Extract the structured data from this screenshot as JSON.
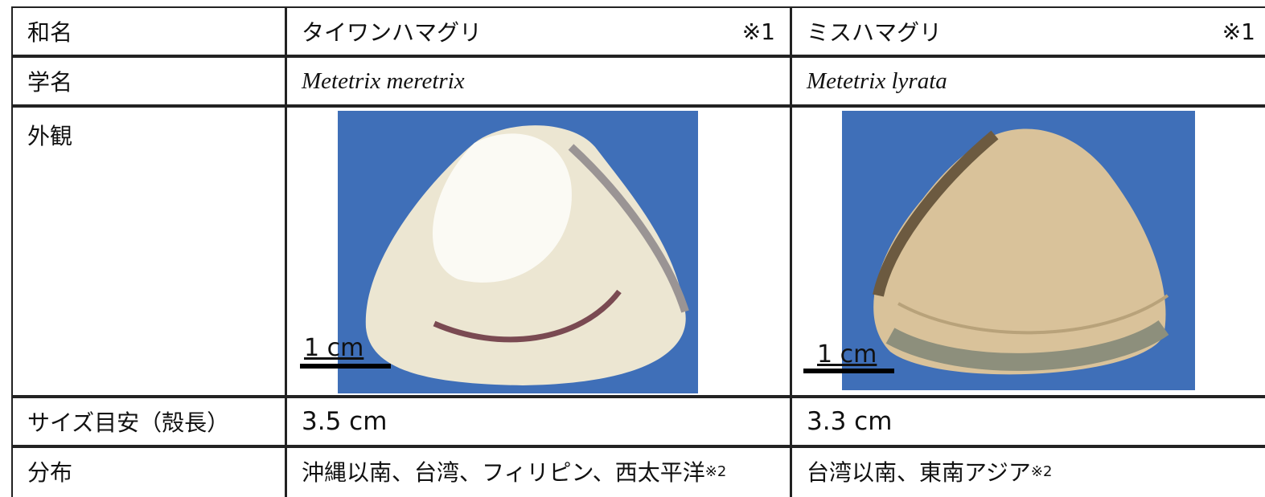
{
  "table": {
    "rows": [
      {
        "label": "和名",
        "cells": [
          {
            "text": "タイワンハマグリ",
            "note": "※1"
          },
          {
            "text": "ミスハマグリ",
            "note": "※1"
          }
        ]
      },
      {
        "label": "学名",
        "cells": [
          {
            "text": "Metetrix meretrix"
          },
          {
            "text": "Metetrix lyrata"
          }
        ]
      },
      {
        "label": "外観",
        "cells": [
          {
            "scale": "1 cm"
          },
          {
            "scale": "1 cm"
          }
        ]
      },
      {
        "label": "サイズ目安（殻長）",
        "cells": [
          {
            "text": "3.5 cm"
          },
          {
            "text": "3.3 cm"
          }
        ]
      },
      {
        "label": "分布",
        "cells": [
          {
            "text": "沖縄以南、台湾、フィリピン、西太平洋",
            "note": "※2"
          },
          {
            "text": "台湾以南、東南アジア",
            "note": "※2"
          }
        ]
      }
    ]
  }
}
